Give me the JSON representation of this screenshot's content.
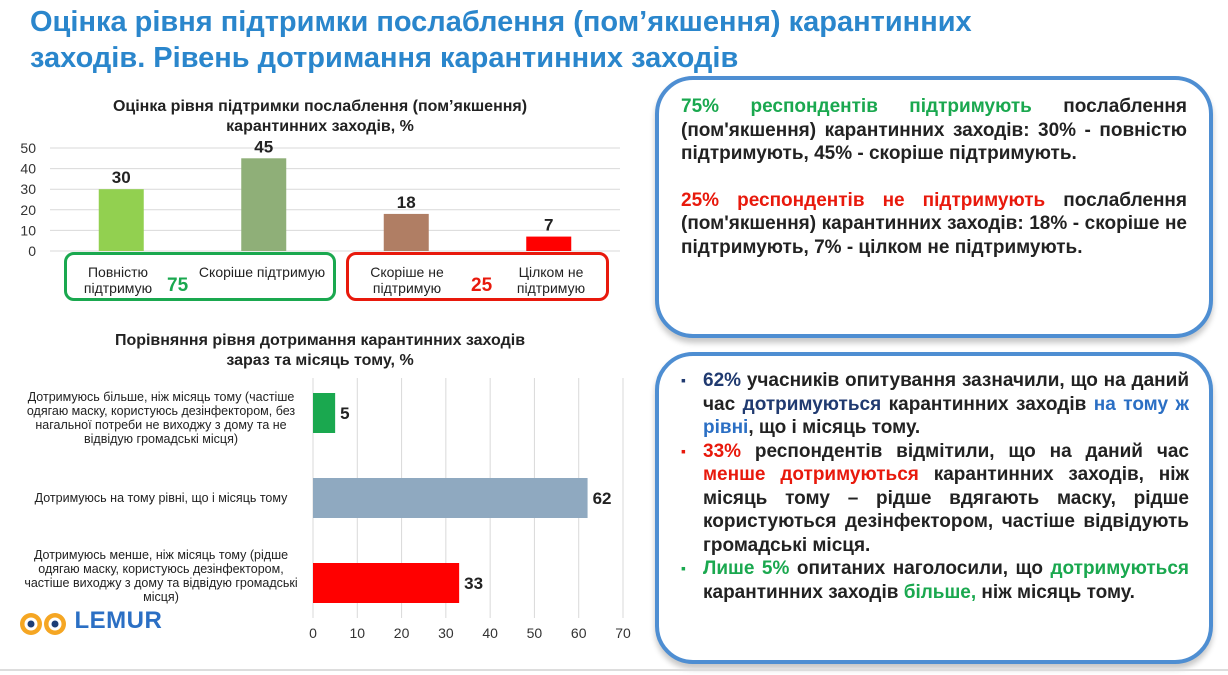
{
  "page": {
    "title_line1": "Оцінка рівня підтримки послаблення (пом’якшення) карантинних",
    "title_line2": "заходів. Рівень дотримання карантинних заходів"
  },
  "chart_data": [
    {
      "type": "bar",
      "title_line1": "Оцінка рівня підтримки послаблення (пом’якшення)",
      "title_line2": "карантинних заходів, %",
      "categories": [
        "Повністю підтримую",
        "Скоріше підтримую",
        "Скоріше не підтримую",
        "Цілком не підтримую"
      ],
      "values": [
        30,
        45,
        18,
        7
      ],
      "colors": [
        "#92d050",
        "#8faf78",
        "#b07e64",
        "#ff0000"
      ],
      "ylim": [
        0,
        50
      ],
      "yticks": [
        "0",
        "10",
        "20",
        "30",
        "40",
        "50"
      ],
      "grid": true,
      "groups": [
        {
          "total": "75",
          "color": "#1aa84f",
          "labels": [
            "Повністю\nпідтримую",
            "Скоріше підтримую"
          ]
        },
        {
          "total": "25",
          "color": "#e8190c",
          "labels": [
            "Скоріше не\nпідтримую",
            "Цілком не\nпідтримую"
          ]
        }
      ]
    },
    {
      "type": "bar",
      "orientation": "horizontal",
      "title_line1": "Порівняння рівня дотримання карантинних заходів",
      "title_line2": "зараз та місяць тому, %",
      "categories": [
        "Дотримуюсь більше, ніж місяць тому (частіше\nодягаю маску, користуюсь дезінфектором, без\nнагальної потреби не виходжу з дому та не\nвідвідую громадські місця)",
        "Дотримуюсь на тому рівні, що і місяць тому",
        "Дотримуюсь менше, ніж місяць тому (рідше\nодягаю маску, користуюсь дезінфектором,\nчастіше виходжу з дому та відвідую громадські\nмісця)"
      ],
      "values": [
        5,
        62,
        33
      ],
      "colors": [
        "#1aa84f",
        "#8fa9c0",
        "#ff0000"
      ],
      "xlim": [
        0,
        70
      ],
      "xticks": [
        "0",
        "10",
        "20",
        "30",
        "40",
        "50",
        "60",
        "70"
      ],
      "grid": true
    }
  ],
  "callout1": {
    "p1_green": "75% респондентів підтримують",
    "p1_rest": " послаблення (пом'якшення) карантинних заходів: 30% - повністю підтримують, 45% - скоріше підтримують.",
    "p2_red": "25% респондентів не підтримують",
    "p2_rest": " послаблення (пом'якшення) карантинних заходів: 18% - скоріше не підтримують, 7% - цілком не підтримують."
  },
  "callout2": {
    "marker": "▪",
    "b1": {
      "pct": "62%",
      "t1": " учасників опитування зазначили, що на даний час ",
      "hl1": "дотримуються",
      "t2": " карантинних заходів ",
      "hl2": "на тому ж рівні",
      "t3": ", що і місяць тому."
    },
    "b2": {
      "pct": "33%",
      "t1": " респондентів відмітили, що на даний час ",
      "hl1": "менше дотримуються",
      "t2": " карантинних заходів, ніж місяць тому – рідше вдягають маску, рідше користуються дезінфектором, частіше відвідують громадські місця."
    },
    "b3": {
      "hl1": "Лише 5%",
      "t1": " опитаних наголосили, що ",
      "hl2": "дотримуються",
      "t2": " карантинних заходів ",
      "hl3": "більше,",
      "t3": " ніж місяць тому."
    }
  },
  "logo": {
    "text": "LEMUR"
  }
}
